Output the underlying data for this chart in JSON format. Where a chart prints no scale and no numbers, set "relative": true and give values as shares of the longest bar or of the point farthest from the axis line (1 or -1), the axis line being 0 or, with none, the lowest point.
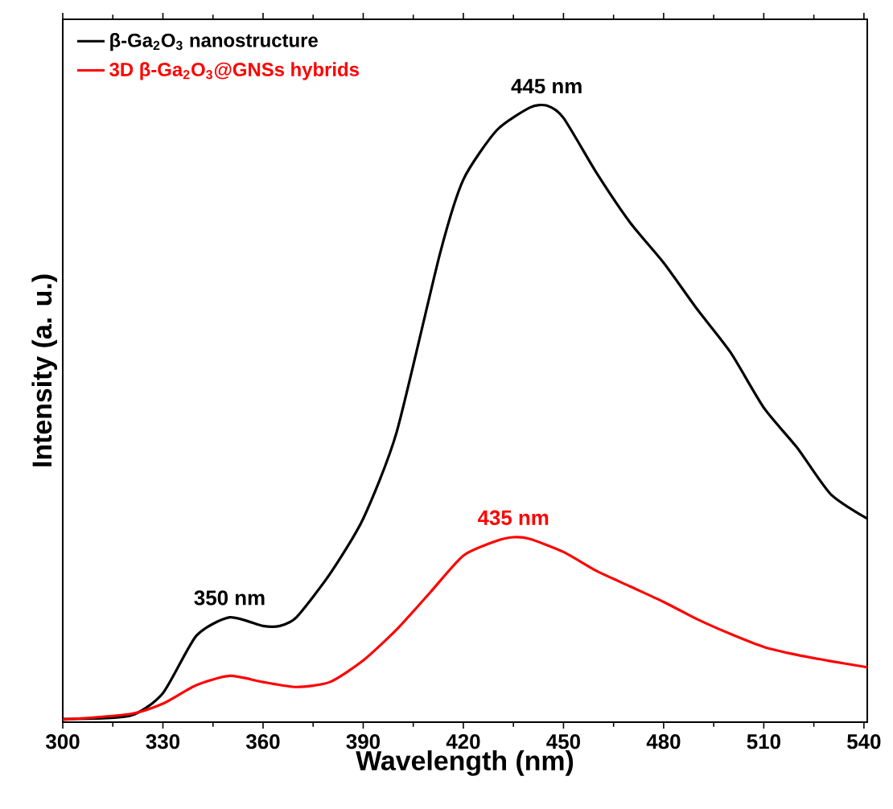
{
  "chart_data": {
    "type": "line",
    "relative": true,
    "xlabel": "Wavelength (nm)",
    "ylabel": "Intensity (a. u.)",
    "xlim": [
      300,
      541
    ],
    "xticks": [
      300,
      330,
      360,
      390,
      420,
      450,
      480,
      510,
      540
    ],
    "tick_labels": "x",
    "legend": "top left",
    "grid": false,
    "marker": "none",
    "line_style": "solid",
    "x": [
      300,
      320,
      330,
      340,
      350,
      360,
      365,
      370,
      380,
      390,
      400,
      413,
      420,
      430,
      440,
      445,
      450,
      460,
      470,
      480,
      490,
      500,
      510,
      520,
      530,
      541
    ],
    "series": [
      {
        "name": "β-Ga$_{2}$O$_{3}$ nanostructure",
        "color": "#000000",
        "values": [
          0.005,
          0.01,
          0.047,
          0.14,
          0.17,
          0.156,
          0.156,
          0.17,
          0.24,
          0.33,
          0.47,
          0.76,
          0.88,
          0.96,
          0.997,
          1.0,
          0.98,
          0.89,
          0.81,
          0.745,
          0.67,
          0.6,
          0.51,
          0.445,
          0.37,
          0.33
        ]
      },
      {
        "name": "3D β-Ga$_{2}$O$_{3}$@GNSs hybrids",
        "color": "#ff0000",
        "x": [
          300,
          320,
          330,
          340,
          350,
          360,
          370,
          380,
          390,
          400,
          410,
          420,
          430,
          435,
          440,
          450,
          460,
          470,
          480,
          490,
          500,
          510,
          520,
          530,
          541
        ],
        "values": [
          0.004,
          0.013,
          0.03,
          0.06,
          0.075,
          0.065,
          0.057,
          0.065,
          0.1,
          0.15,
          0.21,
          0.27,
          0.294,
          0.3,
          0.297,
          0.276,
          0.245,
          0.22,
          0.195,
          0.167,
          0.143,
          0.122,
          0.109,
          0.099,
          0.089
        ]
      }
    ],
    "annotations": [
      {
        "text": "445 nm",
        "x": 445,
        "y": 1.0
      },
      {
        "text": "350 nm",
        "x": 350,
        "y": 0.17
      },
      {
        "text": "435 nm",
        "x": 435,
        "y": 0.3
      }
    ]
  }
}
